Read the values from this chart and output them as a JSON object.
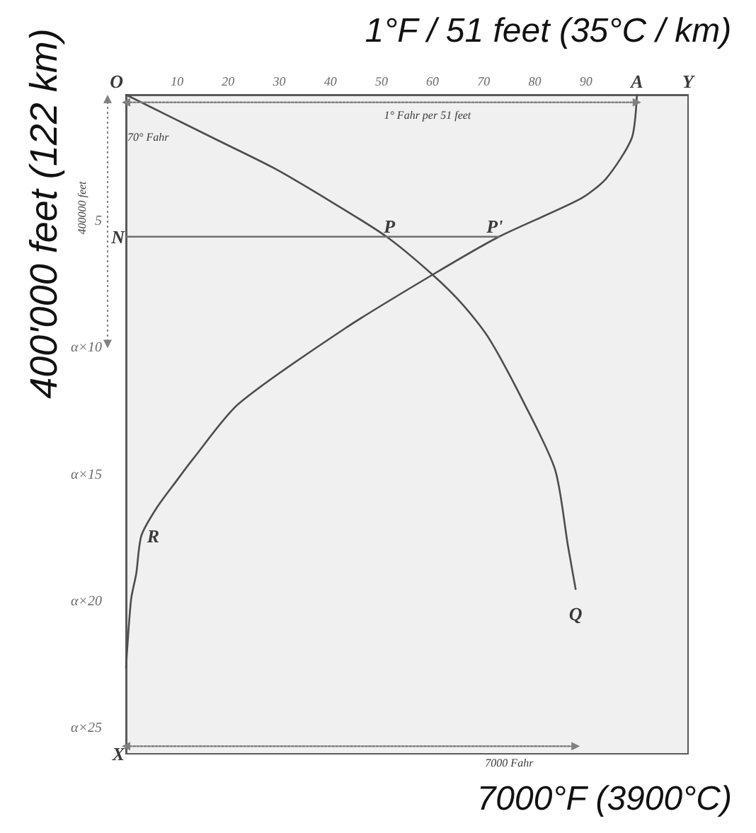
{
  "chart_data": {
    "type": "line",
    "xlabel": "1°F / 51 feet (35°C / km)",
    "ylabel": "400'000 feet (122 km)",
    "xlim": [
      0,
      110
    ],
    "xticks": [
      10,
      20,
      30,
      40,
      50,
      60,
      70,
      80,
      90
    ],
    "ylim": [
      26,
      0
    ],
    "yticks": [
      5,
      {
        "value": 10,
        "label": "α×10"
      },
      {
        "value": 15,
        "label": "α×15"
      },
      {
        "value": 20,
        "label": "α×20"
      },
      {
        "value": 25,
        "label": "α×25"
      }
    ],
    "series": [
      {
        "color": "#4d4d4d",
        "marker": "none",
        "x": [
          0,
          18,
          29,
          40,
          51,
          60,
          66,
          71,
          78,
          84,
          86.5,
          88
        ],
        "values": [
          0,
          1.8,
          2.9,
          4.2,
          5.6,
          7.1,
          8.3,
          9.6,
          12.2,
          14.8,
          17.8,
          19.5
        ]
      },
      {
        "color": "#4d4d4d",
        "marker": "none",
        "x": [
          100,
          99,
          94,
          89,
          73,
          60,
          43,
          22,
          13,
          10,
          6,
          3,
          2,
          1,
          0
        ],
        "values": [
          0,
          1.7,
          3.3,
          4.1,
          5.6,
          7.1,
          9.2,
          12.2,
          14.4,
          15.2,
          16.3,
          17.4,
          18.9,
          19.9,
          22.6
        ]
      },
      {
        "color": "#707070",
        "marker": "none",
        "x": [
          0,
          73
        ],
        "values": [
          5.6,
          5.6
        ]
      },
      {
        "color": "#808080",
        "marker": "triangle",
        "line_style": "dotted",
        "x": [
          0,
          100
        ],
        "values": [
          0.3,
          0.3
        ]
      },
      {
        "color": "#808080",
        "marker": "triangle",
        "line_style": "dotted",
        "x": [
          0,
          88
        ],
        "values": [
          25.7,
          25.7
        ]
      }
    ],
    "annotations": [
      {
        "text": "O",
        "x": 0,
        "y": 0
      },
      {
        "text": "A",
        "x": 100,
        "y": 0
      },
      "Y",
      {
        "text": "N",
        "x": 0,
        "y": 5.6
      },
      {
        "text": "P",
        "x": 51,
        "y": 5.6
      },
      {
        "text": "P'",
        "x": 73,
        "y": 5.6
      },
      {
        "text": "R",
        "x": 3,
        "y": 17.4
      },
      {
        "text": "Q",
        "x": 88,
        "y": 19.5
      },
      {
        "text": "X",
        "x": 0,
        "y": 26
      },
      {
        "text": "1° Fahr per 51 feet",
        "x": 59,
        "y": 0.3
      },
      "70° Fahr",
      {
        "text": "7000 Fahr",
        "x": 75,
        "y": 25.7
      },
      "400000 feet",
      "7000°F (3900°C)"
    ]
  }
}
